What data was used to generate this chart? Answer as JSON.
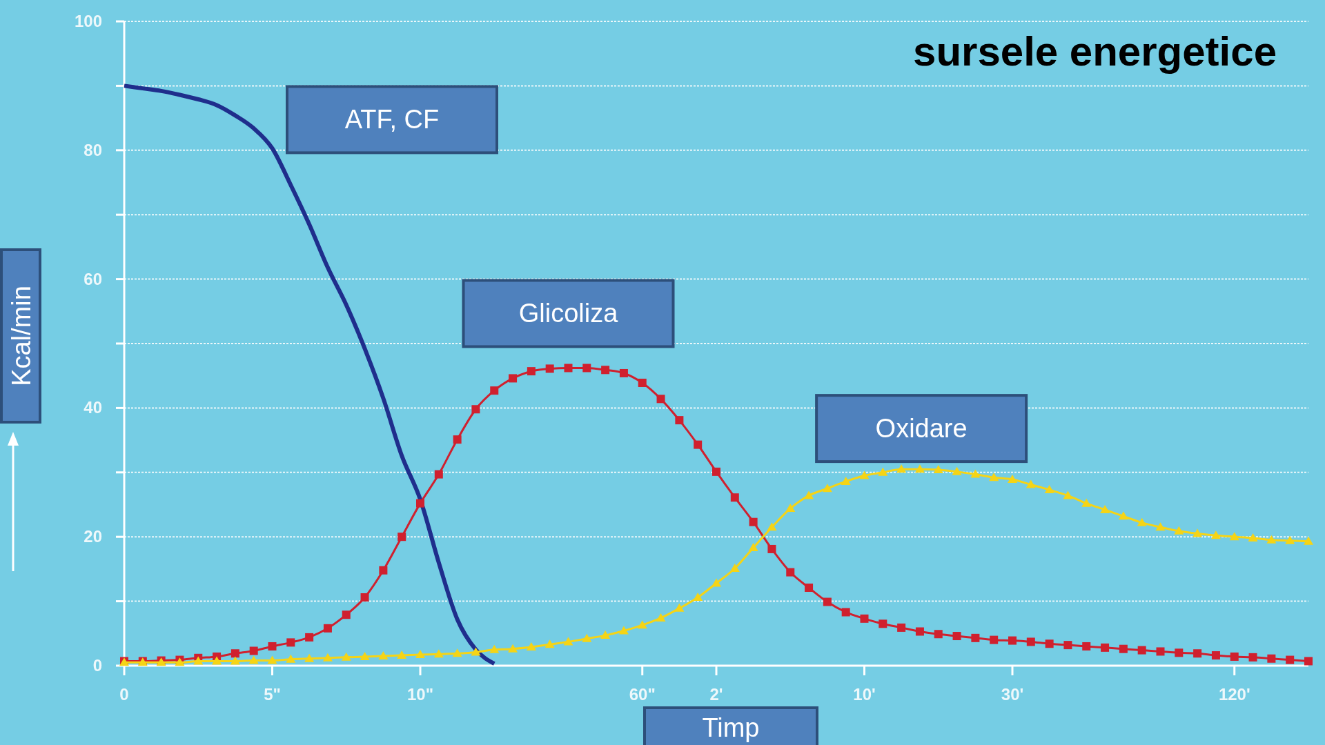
{
  "chart_data": {
    "type": "line",
    "title": "sursele energetice",
    "xlabel": "Timp",
    "ylabel": "Kcal/min",
    "categories": [
      "0",
      null,
      null,
      null,
      null,
      null,
      null,
      null,
      "5\"",
      null,
      null,
      null,
      null,
      null,
      null,
      null,
      "10\"",
      null,
      null,
      null,
      null,
      null,
      null,
      null,
      null,
      null,
      null,
      null,
      "60\"",
      null,
      null,
      null,
      "2'",
      null,
      null,
      null,
      null,
      null,
      null,
      null,
      "10'",
      null,
      null,
      null,
      null,
      null,
      null,
      null,
      "30'",
      null,
      null,
      null,
      null,
      null,
      null,
      null,
      null,
      null,
      null,
      null,
      "120'",
      null,
      null,
      null,
      null
    ],
    "ylim": [
      0,
      100
    ],
    "yticks": [
      0,
      {
        "value": 10,
        "label": null
      },
      20,
      {
        "value": 30,
        "label": null
      },
      40,
      {
        "value": 50,
        "label": null
      },
      60,
      {
        "value": 70,
        "label": null
      },
      80,
      {
        "value": 90,
        "label": null
      },
      100
    ],
    "grid": "y",
    "legend": false,
    "series": [
      {
        "name": "ATF, CF",
        "color": "#1f2e8c",
        "marker": "none",
        "values": [
          90,
          89.6,
          89.2,
          88.6,
          87.9,
          87,
          85.4,
          83.4,
          80.3,
          74.6,
          68.5,
          61.8,
          56,
          49.2,
          41.5,
          32.6,
          25.8,
          16,
          7.2,
          2.5,
          0.3,
          null,
          null,
          null,
          null,
          null,
          null,
          null,
          null,
          null,
          null,
          null,
          null,
          null,
          null,
          null,
          null,
          null,
          null,
          null,
          null,
          null,
          null,
          null,
          null,
          null,
          null,
          null,
          null,
          null,
          null,
          null,
          null,
          null,
          null,
          null,
          null,
          null,
          null,
          null,
          null,
          null,
          null,
          null,
          null
        ]
      },
      {
        "name": "Glicoliza",
        "color": "#d0202e",
        "marker": "square",
        "values": [
          0.7,
          0.7,
          0.8,
          0.9,
          1.2,
          1.4,
          1.9,
          2.3,
          3,
          3.6,
          4.4,
          5.8,
          7.9,
          10.6,
          14.8,
          20,
          25.2,
          29.7,
          35.1,
          39.8,
          42.7,
          44.6,
          45.7,
          46.1,
          46.2,
          46.2,
          45.9,
          45.4,
          43.9,
          41.4,
          38.1,
          34.3,
          30.1,
          26.1,
          22.3,
          18.1,
          14.5,
          12.1,
          9.9,
          8.3,
          7.3,
          6.5,
          5.9,
          5.3,
          4.9,
          4.6,
          4.3,
          4,
          3.9,
          3.7,
          3.4,
          3.2,
          3,
          2.8,
          2.6,
          2.4,
          2.2,
          2,
          1.9,
          1.6,
          1.4,
          1.3,
          1.1,
          0.9,
          0.7
        ]
      },
      {
        "name": "Oxidare",
        "color": "#f5d416",
        "marker": "triangle",
        "values": [
          0.5,
          0.5,
          0.5,
          0.5,
          0.7,
          0.7,
          0.7,
          0.8,
          0.8,
          1,
          1.1,
          1.2,
          1.3,
          1.4,
          1.5,
          1.6,
          1.7,
          1.8,
          1.9,
          2.1,
          2.5,
          2.6,
          2.9,
          3.3,
          3.7,
          4.2,
          4.7,
          5.4,
          6.3,
          7.4,
          8.9,
          10.6,
          12.8,
          15.1,
          18.3,
          21.5,
          24.4,
          26.4,
          27.5,
          28.6,
          29.5,
          30,
          30.5,
          30.5,
          30.4,
          30.1,
          29.7,
          29.2,
          28.9,
          28.1,
          27.3,
          26.4,
          25.2,
          24.2,
          23.2,
          22.2,
          21.5,
          20.9,
          20.5,
          20.2,
          20,
          19.8,
          19.5,
          19.4,
          19.3
        ]
      }
    ]
  }
}
